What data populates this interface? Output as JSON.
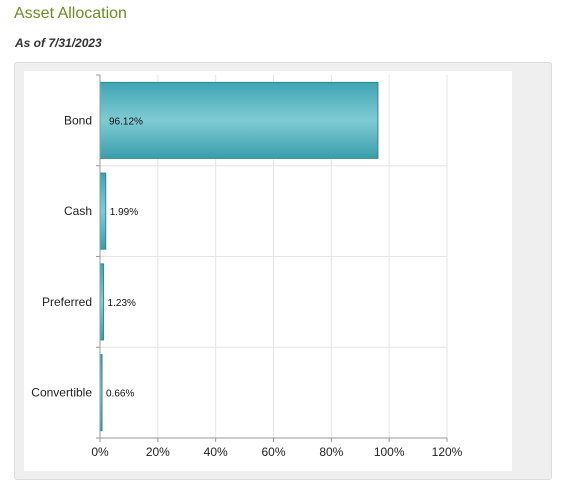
{
  "header": {
    "title": "Asset Allocation",
    "as_of": "As of 7/31/2023"
  },
  "colors": {
    "title": "#6b8e23",
    "bar_fill": "#4fb1bd",
    "bar_stroke": "#2a8a96"
  },
  "chart_data": {
    "type": "bar",
    "orientation": "horizontal",
    "categories": [
      "Bond",
      "Cash",
      "Preferred",
      "Convertible"
    ],
    "values": [
      96.12,
      1.99,
      1.23,
      0.66
    ],
    "value_labels": [
      "96.12%",
      "1.99%",
      "1.23%",
      "0.66%"
    ],
    "xlim": [
      0,
      120
    ],
    "x_ticks": [
      0,
      20,
      40,
      60,
      80,
      100,
      120
    ],
    "x_tick_labels": [
      "0%",
      "20%",
      "40%",
      "60%",
      "80%",
      "100%",
      "120%"
    ],
    "grid": true,
    "legend": "none"
  }
}
